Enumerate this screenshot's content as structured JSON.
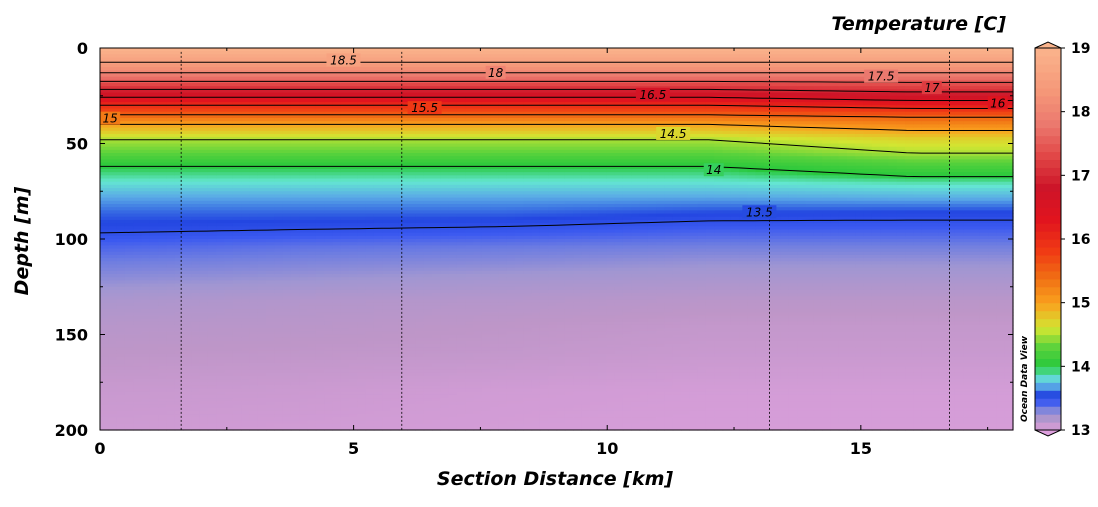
{
  "chart_data": {
    "type": "heatmap",
    "title": "Temperature [C]",
    "xlabel": "Section Distance [km]",
    "ylabel": "Depth [m]",
    "credit": "Ocean Data View",
    "xlim": [
      0,
      18
    ],
    "ylim": [
      200,
      0
    ],
    "x_ticks": [
      0,
      5,
      10,
      15
    ],
    "y_ticks": [
      0,
      50,
      100,
      150,
      200
    ],
    "colorbar": {
      "min": 13,
      "max": 19,
      "ticks": [
        13,
        14,
        15,
        16,
        17,
        18,
        19
      ]
    },
    "station_distances_km": [
      1.6,
      5.95,
      13.2,
      16.75
    ],
    "depth_levels_m": [
      0,
      5,
      10,
      15,
      20,
      25,
      30,
      35,
      40,
      48,
      55,
      62,
      70,
      78,
      86,
      95,
      104,
      112,
      122,
      132,
      145,
      160,
      180,
      200
    ],
    "profiles": [
      {
        "x": 0,
        "temps": [
          19.0,
          18.7,
          18.3,
          17.8,
          17.2,
          16.6,
          16.0,
          15.5,
          15.0,
          14.5,
          14.3,
          14.0,
          13.85,
          13.7,
          13.6,
          13.52,
          13.42,
          13.35,
          13.28,
          13.2,
          13.15,
          13.12,
          13.08,
          13.06
        ]
      },
      {
        "x": 4,
        "temps": [
          19.0,
          18.7,
          18.3,
          17.8,
          17.2,
          16.6,
          16.0,
          15.5,
          15.0,
          14.5,
          14.3,
          14.0,
          13.85,
          13.7,
          13.6,
          13.5,
          13.38,
          13.32,
          13.25,
          13.17,
          13.14,
          13.11,
          13.07,
          13.05
        ]
      },
      {
        "x": 8,
        "temps": [
          19.0,
          18.7,
          18.3,
          17.8,
          17.2,
          16.6,
          16.0,
          15.5,
          15.0,
          14.5,
          14.3,
          14.0,
          13.85,
          13.7,
          13.6,
          13.48,
          13.36,
          13.3,
          13.22,
          13.16,
          13.12,
          13.1,
          13.05,
          13.04
        ]
      },
      {
        "x": 12,
        "temps": [
          19.0,
          18.7,
          18.3,
          17.8,
          17.2,
          16.6,
          16.0,
          15.5,
          15.0,
          14.5,
          14.3,
          14.0,
          13.85,
          13.7,
          13.56,
          13.44,
          13.34,
          13.27,
          13.2,
          13.14,
          13.1,
          13.08,
          13.04,
          13.03
        ]
      },
      {
        "x": 16,
        "temps": [
          19.0,
          18.7,
          18.3,
          17.8,
          17.3,
          16.8,
          16.2,
          15.6,
          15.2,
          14.7,
          14.5,
          14.2,
          13.9,
          13.72,
          13.55,
          13.44,
          13.34,
          13.27,
          13.2,
          13.14,
          13.1,
          13.08,
          13.04,
          13.03
        ]
      },
      {
        "x": 18,
        "temps": [
          19.0,
          18.7,
          18.3,
          17.8,
          17.3,
          16.8,
          16.2,
          15.6,
          15.2,
          14.7,
          14.5,
          14.2,
          13.9,
          13.72,
          13.55,
          13.44,
          13.34,
          13.27,
          13.2,
          13.14,
          13.1,
          13.08,
          13.04,
          13.03
        ]
      }
    ],
    "contour_levels": [
      18.5,
      18,
      17.5,
      17,
      16.5,
      16,
      15.5,
      15,
      14.5,
      14,
      13.5
    ],
    "contour_labels": [
      {
        "text": "18.5",
        "x": 4.8,
        "y": 6.5
      },
      {
        "text": "18",
        "x": 7.8,
        "y": 13
      },
      {
        "text": "17.5",
        "x": 15.4,
        "y": 15
      },
      {
        "text": "17",
        "x": 16.4,
        "y": 21
      },
      {
        "text": "16.5",
        "x": 10.9,
        "y": 24.5
      },
      {
        "text": "16",
        "x": 17.7,
        "y": 29
      },
      {
        "text": "15.5",
        "x": 6.4,
        "y": 31.5
      },
      {
        "text": "15",
        "x": 0.2,
        "y": 37
      },
      {
        "text": "14.5",
        "x": 11.3,
        "y": 45
      },
      {
        "text": "14",
        "x": 12.1,
        "y": 64
      },
      {
        "text": "13.5",
        "x": 13.0,
        "y": 86
      }
    ]
  }
}
